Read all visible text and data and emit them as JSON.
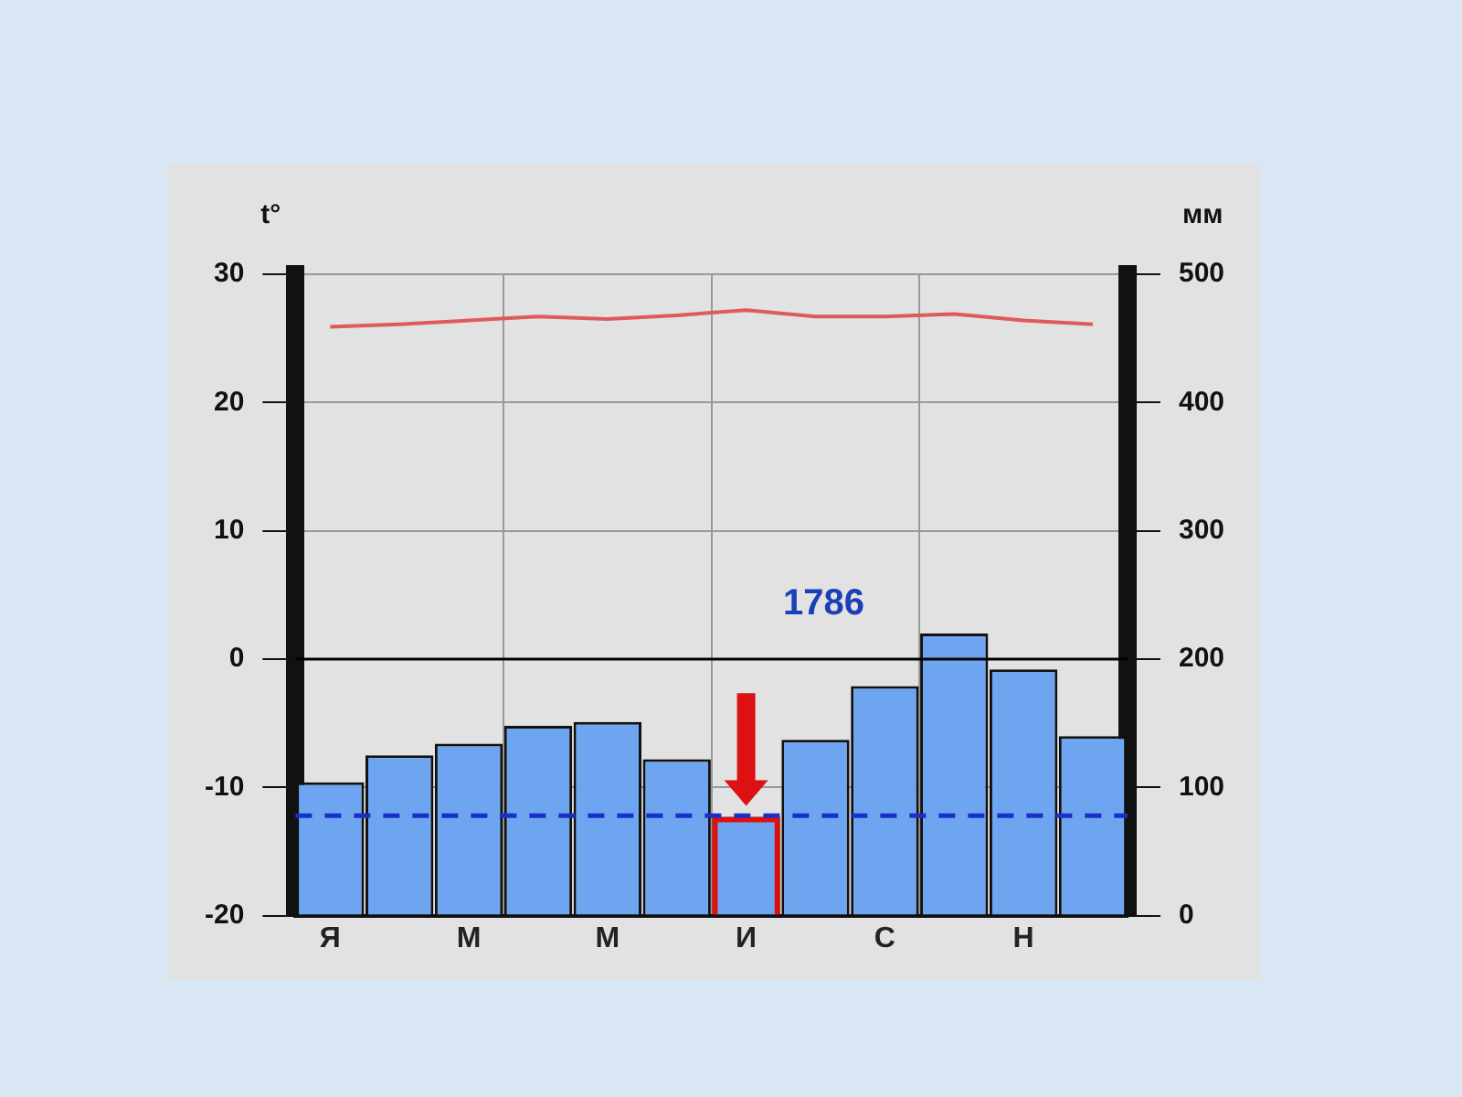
{
  "chart_data": {
    "type": "bar",
    "ylabel": "t°",
    "y2label": "мм",
    "categories": [
      "Я",
      null,
      "М",
      null,
      "М",
      null,
      "И",
      null,
      "С",
      null,
      "Н",
      null
    ],
    "series": [
      {
        "axis": "y2",
        "color": "#6ea5f0",
        "values": [
          104,
          125,
          134,
          148,
          151,
          122,
          77,
          137,
          179,
          220,
          192,
          140
        ]
      },
      {
        "axis": "y2",
        "color": "#e01010",
        "values": [
          null,
          null,
          null,
          null,
          null,
          null,
          77,
          null,
          null,
          null,
          null,
          null
        ]
      },
      {
        "type": "line",
        "axis": "y",
        "color": "#e05a5a",
        "values": [
          25.9,
          26.1,
          26.4,
          26.7,
          26.5,
          26.8,
          27.2,
          26.7,
          26.7,
          26.9,
          26.4,
          26.1
        ]
      }
    ],
    "ylim": [
      -20,
      30
    ],
    "yticks": [
      -20,
      -10,
      0,
      10,
      20,
      30
    ],
    "y2lim": [
      0,
      500
    ],
    "y2ticks": [
      0,
      100,
      200,
      300,
      400,
      500
    ],
    "ref_lines": [
      {
        "axis": "y",
        "value": 0,
        "color": "#000000"
      },
      {
        "axis": "y2",
        "value": 78,
        "color": "#1a2fc8",
        "line_style": "dashed"
      }
    ],
    "annotations": [
      "1786"
    ],
    "grid": true,
    "legend": false
  }
}
